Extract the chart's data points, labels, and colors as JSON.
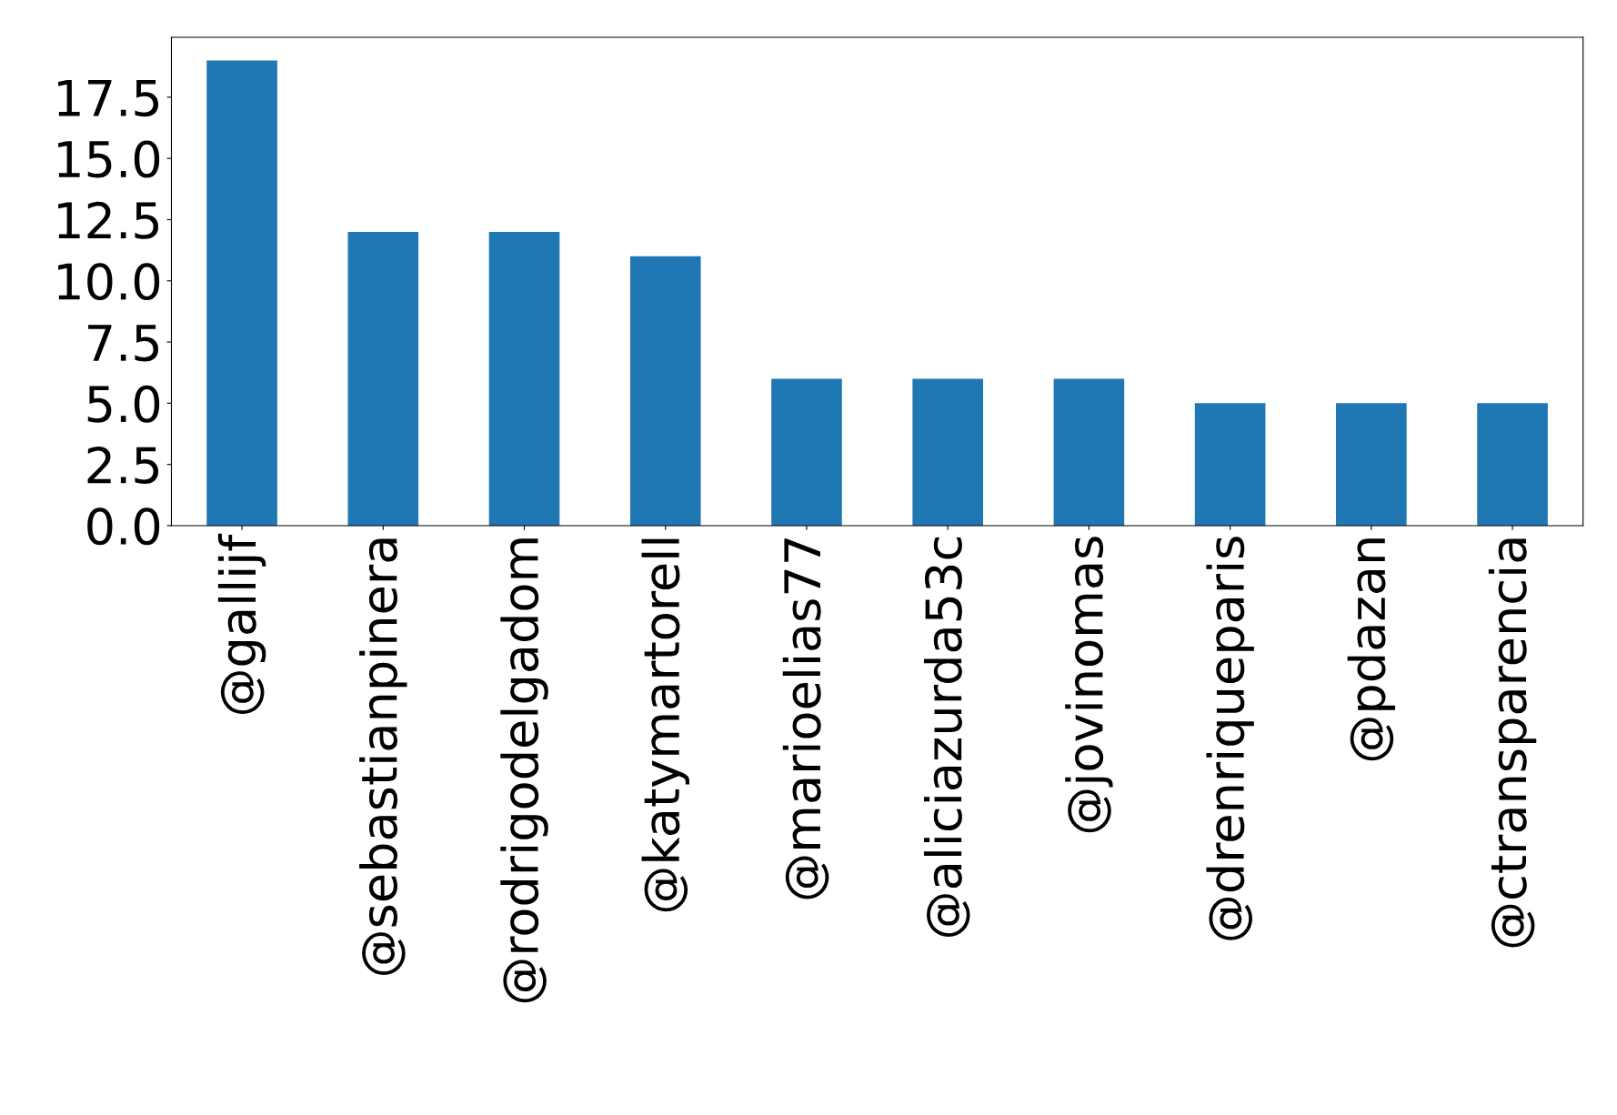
{
  "chart_data": {
    "type": "bar",
    "categories": [
      "@gallijf",
      "@sebastianpinera",
      "@rodrigodelgadom",
      "@katymartorell",
      "@marioelias77",
      "@aliciazurda53c",
      "@jovinomas",
      "@drenriqueparis",
      "@pdazan",
      "@ctransparencia"
    ],
    "values": [
      19,
      12,
      12,
      11,
      6,
      6,
      6,
      5,
      5,
      5
    ],
    "color": "#1f77b4",
    "ylim": [
      0,
      19.95
    ],
    "yticks": [
      {
        "value": 0,
        "label": "0.0"
      },
      {
        "value": 2.5,
        "label": "2.5"
      },
      {
        "value": 5,
        "label": "5.0"
      },
      {
        "value": 7.5,
        "label": "7.5"
      },
      {
        "value": 10,
        "label": "10.0"
      },
      {
        "value": 12.5,
        "label": "12.5"
      },
      {
        "value": 15,
        "label": "15.0"
      },
      {
        "value": 17.5,
        "label": "17.5"
      }
    ],
    "grid": false
  }
}
